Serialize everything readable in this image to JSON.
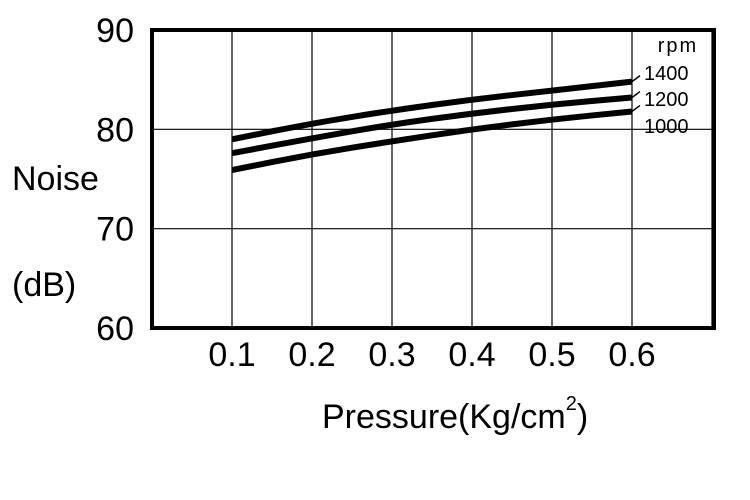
{
  "chart_data": {
    "type": "line",
    "x": [
      0.1,
      0.2,
      0.3,
      0.4,
      0.5,
      0.6
    ],
    "x_ticks": [
      "0.1",
      "0.2",
      "0.3",
      "0.4",
      "0.5",
      "0.6"
    ],
    "xlim": [
      0.0,
      0.6
    ],
    "ylim": [
      60,
      90
    ],
    "y_ticks": [
      "60",
      "70",
      "80",
      "90"
    ],
    "ylabel_line1": "Noise",
    "ylabel_line2": "(dB)",
    "xlabel": "Pressure(Kg/cm",
    "xlabel_sup": "2",
    "xlabel_close": ")",
    "legend_title": "rpm",
    "grid": true,
    "series": [
      {
        "name": "1400",
        "values": [
          79.0,
          80.6,
          81.9,
          83.0,
          83.9,
          84.8
        ]
      },
      {
        "name": "1200",
        "values": [
          77.6,
          79.1,
          80.5,
          81.6,
          82.5,
          83.2
        ]
      },
      {
        "name": "1000",
        "values": [
          75.9,
          77.5,
          78.8,
          80.0,
          81.0,
          81.8
        ]
      }
    ]
  }
}
